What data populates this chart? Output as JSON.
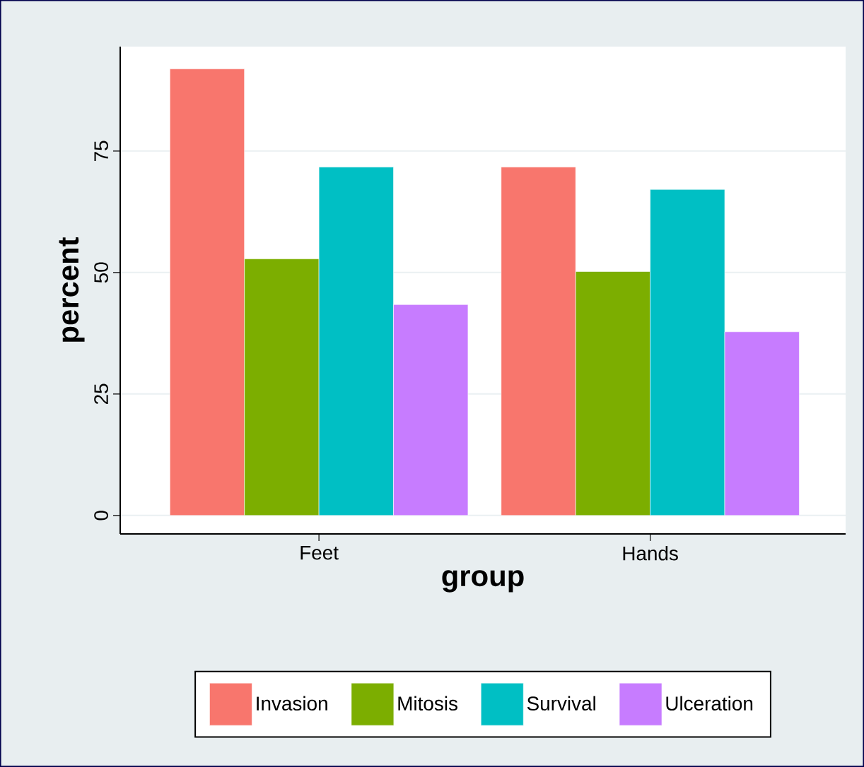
{
  "chart_data": {
    "type": "bar",
    "xlabel": "group",
    "ylabel": "percent",
    "categories": [
      "Feet",
      "Hands"
    ],
    "series": [
      {
        "name": "Invasion",
        "color": "#f8766d",
        "values": [
          91.9,
          71.7
        ]
      },
      {
        "name": "Mitosis",
        "color": "#7cae00",
        "values": [
          52.8,
          50.2
        ]
      },
      {
        "name": "Survival",
        "color": "#00bfc4",
        "values": [
          71.7,
          67.1
        ]
      },
      {
        "name": "Ulceration",
        "color": "#c77cff",
        "values": [
          43.4,
          37.8
        ]
      }
    ],
    "ylim": [
      -3.8,
      96.5
    ],
    "yticks": [
      0,
      25,
      50,
      75
    ],
    "grid": "y",
    "legend": "bottom"
  }
}
